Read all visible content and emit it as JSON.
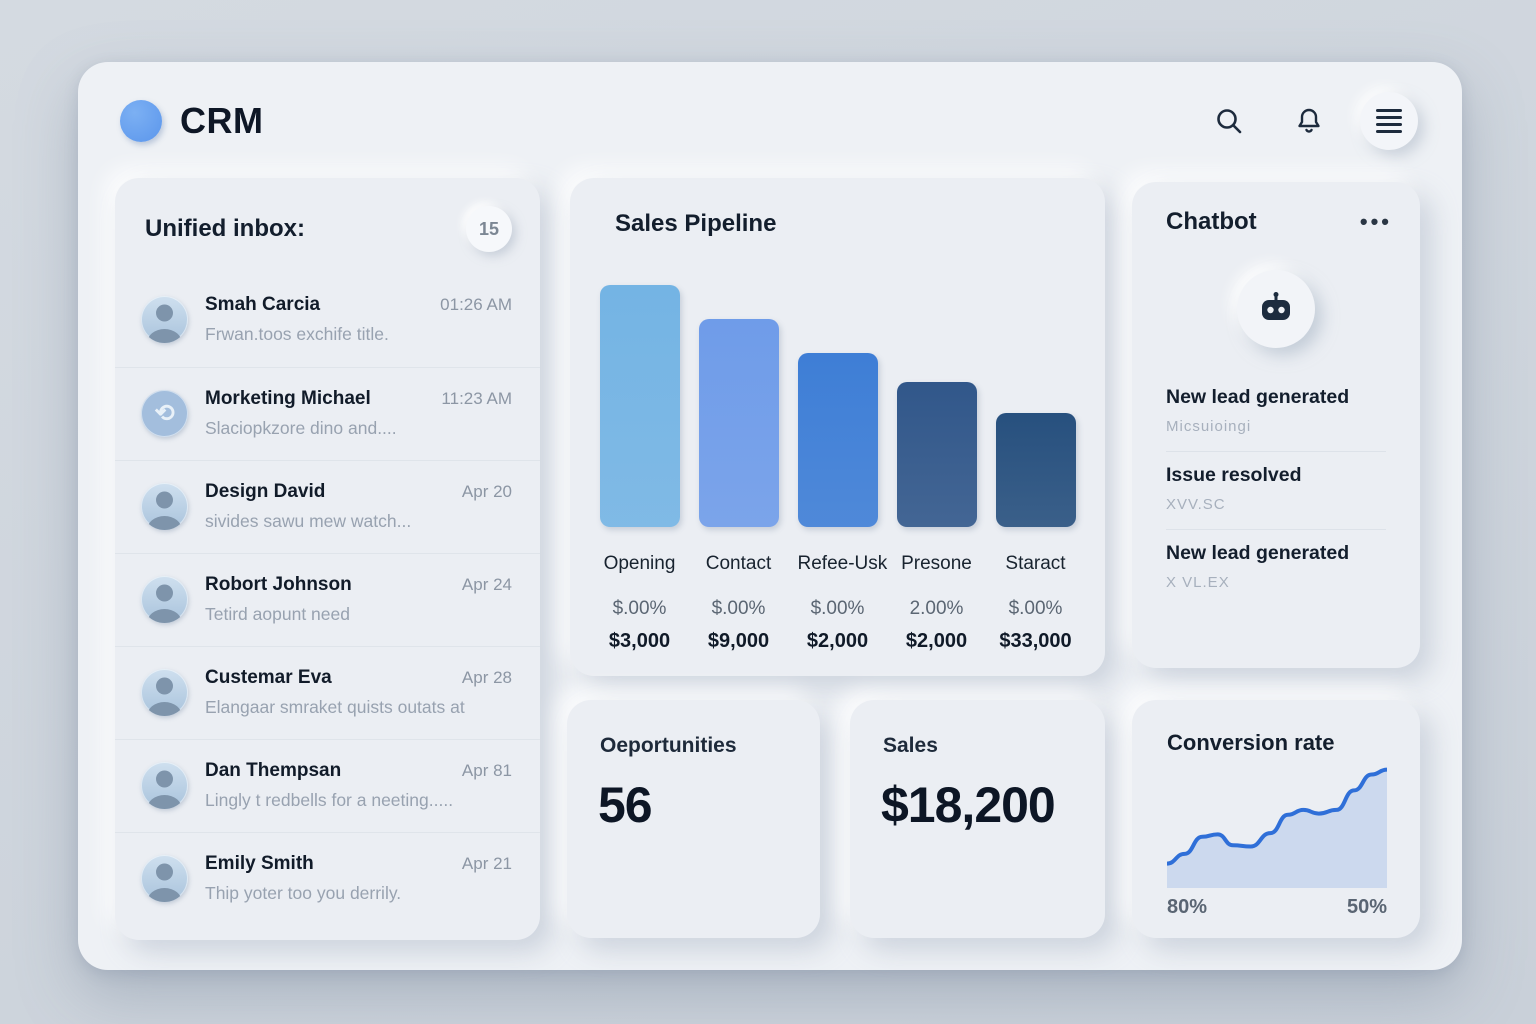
{
  "header": {
    "app_title": "CRM",
    "search_icon": "search-icon",
    "bell_icon": "notifications-icon",
    "menu_icon": "hamburger-menu-icon"
  },
  "colors": {
    "accent_blue": "#5b96ec",
    "line_blue": "#2f6fd8",
    "line_fill": "#ccd9ee",
    "bar_colors": [
      "#74b4e4",
      "#6f9ce9",
      "#3e7ed6",
      "#31578a",
      "#27507e"
    ]
  },
  "inbox": {
    "title": "Unified inbox:",
    "badge": "15",
    "items": [
      {
        "name": "Smah Carcia",
        "time": "01:26 AM",
        "preview": "Frwan.toos exchife title.",
        "avatar": "photo"
      },
      {
        "name": "Morketing Michael",
        "time": "11:23 AM",
        "preview": "Slaciopkzore dino and....",
        "avatar": "logo"
      },
      {
        "name": "Design David",
        "time": "Apr 20",
        "preview": "sivides sawu mew watch...",
        "avatar": "photo"
      },
      {
        "name": "Robort Johnson",
        "time": "Apr 24",
        "preview": "Tetird aopunt need",
        "avatar": "photo"
      },
      {
        "name": "Custemar Eva",
        "time": "Apr 28",
        "preview": "Elangaar smraket quists outats at",
        "avatar": "photo"
      },
      {
        "name": "Dan Thempsan",
        "time": "Apr 81",
        "preview": "Lingly t redbells for a neeting.....",
        "avatar": "photo"
      },
      {
        "name": "Emily Smith",
        "time": "Apr 21",
        "preview": "Thip yoter too you derrily.",
        "avatar": "photo"
      }
    ]
  },
  "pipeline": {
    "title": "Sales Pipeline"
  },
  "chatbot": {
    "title": "Chatbot",
    "menu_label": "•••",
    "bot_icon": "chatbot-robot-icon",
    "notifications": [
      {
        "title": "New lead generated",
        "subtitle": "Micsuioingi"
      },
      {
        "title": "Issue resolved",
        "subtitle": "XVV.SC"
      },
      {
        "title": "New lead generated",
        "subtitle": "X VL.EX"
      }
    ]
  },
  "kpis": {
    "opportunities": {
      "label": "Oeportunities",
      "value": "56"
    },
    "sales": {
      "label": "Sales",
      "value": "$18,200"
    }
  },
  "conversion": {
    "title": "Conversion rate",
    "left_label": "80%",
    "right_label": "50%"
  },
  "chart_data": [
    {
      "type": "bar",
      "title": "Sales Pipeline",
      "categories": [
        "Opening",
        "Contact",
        "Refee-Usk",
        "Presone",
        "Staract"
      ],
      "values": [
        100,
        86,
        72,
        60,
        47
      ],
      "percent_labels": [
        "$.00%",
        "$.00%",
        "$.00%",
        "2.00%",
        "$.00%"
      ],
      "amount_labels": [
        "$3,000",
        "$9,000",
        "$2,000",
        "$2,000",
        "$33,000"
      ],
      "bar_colors": [
        "#74b4e4",
        "#6f9ce9",
        "#3e7ed6",
        "#31578a",
        "#27507e"
      ],
      "ylim": [
        0,
        100
      ],
      "grid": false,
      "legend": "none"
    },
    {
      "type": "line",
      "title": "Conversion rate",
      "x": [
        0,
        8,
        16,
        23,
        30,
        38,
        47,
        55,
        62,
        69,
        77,
        85,
        93,
        100
      ],
      "y": [
        20,
        28,
        42,
        44,
        35,
        34,
        45,
        60,
        64,
        61,
        64,
        80,
        93,
        97
      ],
      "xlabel_left": "80%",
      "xlabel_right": "50%",
      "line_color": "#2f6fd8",
      "fill_color": "#ccd9ee",
      "grid": false,
      "legend": "none"
    }
  ]
}
